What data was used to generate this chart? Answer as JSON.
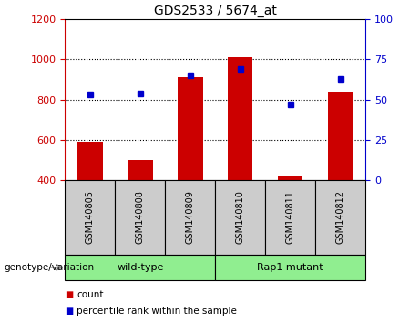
{
  "title": "GDS2533 / 5674_at",
  "samples": [
    "GSM140805",
    "GSM140808",
    "GSM140809",
    "GSM140810",
    "GSM140811",
    "GSM140812"
  ],
  "count_values": [
    590,
    500,
    910,
    1010,
    425,
    840
  ],
  "percentile_values": [
    53,
    54,
    65,
    69,
    47,
    63
  ],
  "count_baseline": 400,
  "left_ylim": [
    400,
    1200
  ],
  "right_ylim": [
    0,
    100
  ],
  "left_yticks": [
    400,
    600,
    800,
    1000,
    1200
  ],
  "right_yticks": [
    0,
    25,
    50,
    75,
    100
  ],
  "left_color": "#cc0000",
  "right_color": "#0000cc",
  "bar_color": "#cc0000",
  "dot_color": "#0000cc",
  "group_label": "genotype/variation",
  "legend_count": "count",
  "legend_percentile": "percentile rank within the sample",
  "sample_box_color": "#cccccc",
  "group_color": "#90ee90",
  "bar_width": 0.5,
  "group_boundaries": [
    [
      0,
      2,
      "wild-type"
    ],
    [
      3,
      5,
      "Rap1 mutant"
    ]
  ]
}
